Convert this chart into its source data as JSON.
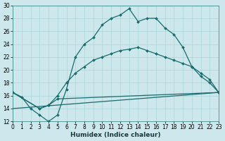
{
  "xlabel": "Humidex (Indice chaleur)",
  "bg_color": "#cce8ec",
  "grid_color": "#aad4d8",
  "line_color": "#1a6b6b",
  "xlim": [
    0,
    23
  ],
  "ylim": [
    12,
    30
  ],
  "yticks": [
    12,
    14,
    16,
    18,
    20,
    22,
    24,
    26,
    28,
    30
  ],
  "xticks": [
    0,
    1,
    2,
    3,
    4,
    5,
    6,
    7,
    8,
    9,
    10,
    11,
    12,
    13,
    14,
    15,
    16,
    17,
    18,
    19,
    20,
    21,
    22,
    23
  ],
  "line1_x": [
    0,
    1,
    2,
    3,
    4,
    5,
    6,
    7,
    8,
    9,
    10,
    11,
    12,
    13,
    14,
    15,
    16,
    17,
    18,
    19,
    20,
    21,
    22,
    23
  ],
  "line1_y": [
    16.5,
    15.8,
    14.0,
    13.0,
    12.0,
    13.0,
    17.0,
    22.0,
    24.0,
    25.0,
    27.0,
    28.0,
    28.5,
    29.5,
    27.5,
    28.0,
    28.0,
    26.5,
    25.5,
    23.5,
    20.5,
    19.0,
    18.0,
    16.5
  ],
  "line2_x": [
    0,
    3,
    4,
    5,
    6,
    7,
    8,
    9,
    10,
    11,
    12,
    13,
    14,
    15,
    16,
    17,
    18,
    19,
    20,
    21,
    22,
    23
  ],
  "line2_y": [
    16.5,
    14.0,
    14.5,
    16.0,
    18.0,
    19.5,
    20.5,
    21.5,
    22.0,
    22.5,
    23.0,
    23.2,
    23.5,
    23.0,
    22.5,
    22.0,
    21.5,
    21.0,
    20.5,
    19.5,
    18.5,
    16.5
  ],
  "line3_x": [
    0,
    3,
    4,
    5,
    23
  ],
  "line3_y": [
    16.5,
    14.0,
    14.5,
    15.5,
    16.5
  ],
  "line4_x": [
    0,
    23
  ],
  "line4_y": [
    14.0,
    16.5
  ]
}
